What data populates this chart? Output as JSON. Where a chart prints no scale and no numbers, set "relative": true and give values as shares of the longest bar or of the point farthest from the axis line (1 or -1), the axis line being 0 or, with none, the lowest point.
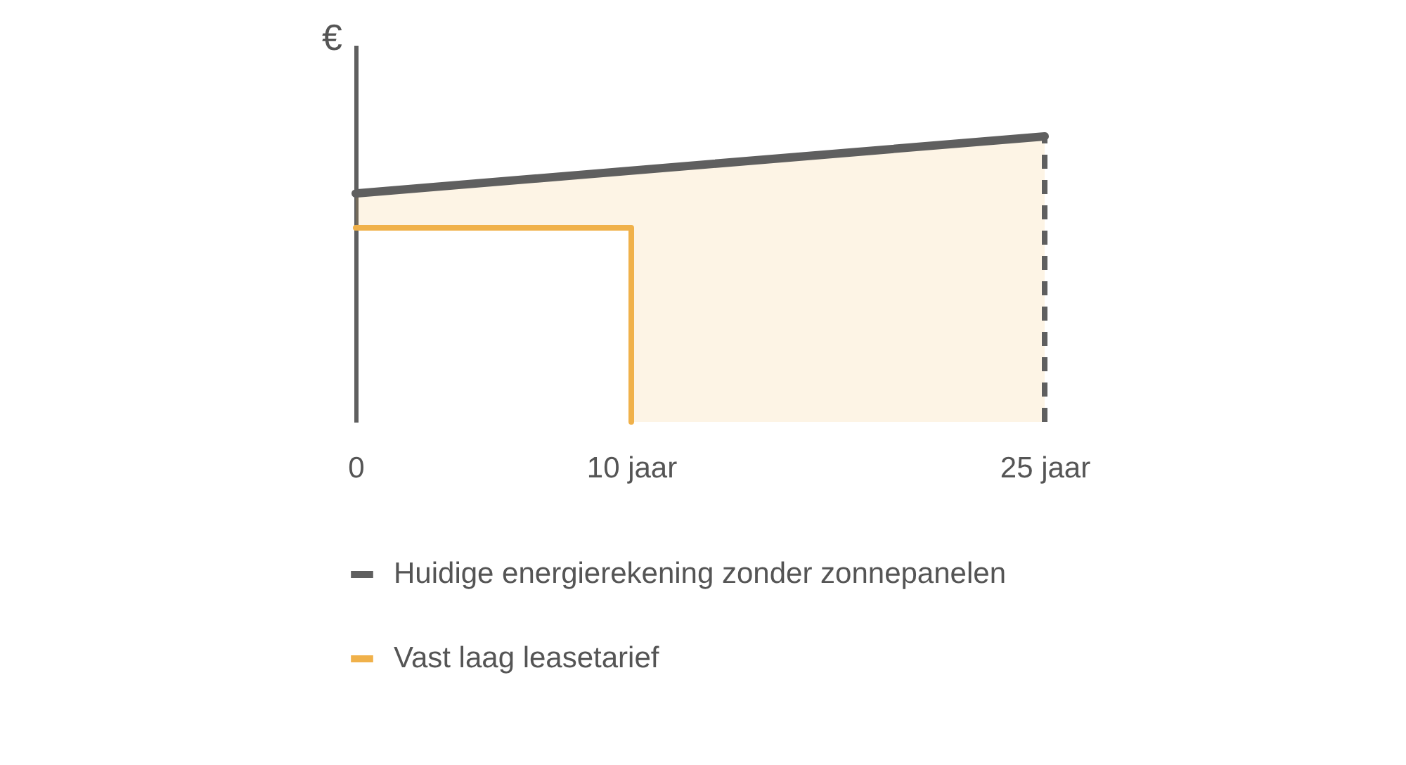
{
  "chart_data": {
    "type": "line",
    "relative": true,
    "ylabel": "€",
    "xlim": [
      0,
      25
    ],
    "xticks": [
      0,
      {
        "value": 10,
        "label": "10 jaar"
      },
      {
        "value": 25,
        "label": "25 jaar"
      }
    ],
    "series": [
      {
        "name": "Huidige energierekening zonder zonnepanelen",
        "color": "#5f5f5f",
        "x": [
          0,
          25
        ],
        "values": [
          0.8,
          1
        ]
      },
      {
        "name": "Vast laag leasetarief",
        "color": "#f0b14a",
        "x": [
          0,
          10,
          10,
          25
        ],
        "values": [
          0.68,
          0.68,
          0,
          null
        ],
        "lower": [
          0.68,
          0.68,
          0,
          0
        ],
        "upper": [
          0.8,
          0.88,
          0.88,
          1
        ]
      }
    ],
    "ref_lines": [
      {
        "axis": "x",
        "value": 25,
        "color": "#5f5f5f",
        "line_style": "dashed"
      }
    ],
    "legend": "bottom",
    "grid": false
  }
}
